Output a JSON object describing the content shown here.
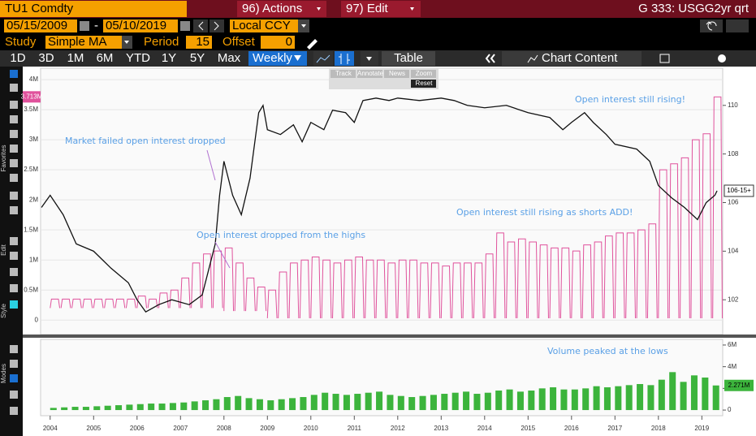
{
  "header": {
    "ticker": "TU1 Comdty",
    "actions": "96) Actions",
    "edit": "97) Edit",
    "chart_id": "G 333: USGG2yr qrt"
  },
  "controls": {
    "start_date": "05/15/2009",
    "end_date": "05/10/2019",
    "currency": "Local CCY",
    "study_label": "Study",
    "study": "Simple MA",
    "period_label": "Period",
    "period": 15,
    "offset_label": "Offset",
    "offset": 0
  },
  "toolbar": {
    "ranges": [
      "1D",
      "3D",
      "1M",
      "6M",
      "YTD",
      "1Y",
      "5Y",
      "Max"
    ],
    "frequency": "Weekly",
    "table": "Table",
    "chart_content": "Chart Content"
  },
  "popup": [
    "Track",
    "Annotate",
    "News",
    "Zoom",
    "Reset"
  ],
  "side_labels": [
    "Favorites",
    "Edit",
    "Style",
    "Modes"
  ],
  "chart_data": [
    {
      "type": "line",
      "x_price": [
        2003.8,
        2004.0,
        2004.3,
        2004.6,
        2005.0,
        2005.4,
        2005.8,
        2006.0,
        2006.2,
        2006.5,
        2006.8,
        2007.2,
        2007.5,
        2007.8,
        2007.9,
        2008.0,
        2008.2,
        2008.4,
        2008.6,
        2008.8,
        2008.9,
        2009.0,
        2009.3,
        2009.6,
        2009.8,
        2010.0,
        2010.3,
        2010.5,
        2010.8,
        2011.0,
        2011.2,
        2011.5,
        2011.8,
        2012.0,
        2012.5,
        2013.0,
        2013.3,
        2013.6,
        2014.0,
        2014.5,
        2015.0,
        2015.5,
        2015.8,
        2016.0,
        2016.3,
        2016.5,
        2016.8,
        2017.0,
        2017.5,
        2017.8,
        2018.0,
        2018.3,
        2018.6,
        2018.9,
        2019.1,
        2019.3,
        2019.35
      ],
      "price": [
        105.8,
        106.3,
        105.5,
        104.3,
        104.0,
        103.3,
        102.7,
        102.0,
        101.5,
        101.8,
        102.0,
        101.8,
        102.2,
        104.3,
        106.3,
        107.7,
        106.3,
        105.5,
        107.0,
        109.7,
        110.0,
        109.0,
        108.8,
        109.2,
        108.5,
        109.3,
        109.0,
        109.8,
        109.7,
        109.3,
        110.2,
        110.3,
        110.2,
        110.3,
        110.2,
        110.3,
        110.2,
        110.0,
        109.9,
        110.0,
        109.7,
        109.5,
        109.0,
        109.3,
        109.7,
        109.3,
        108.8,
        108.4,
        108.2,
        107.7,
        106.7,
        106.2,
        105.8,
        105.3,
        106.0,
        106.3,
        106.484375
      ],
      "price_color": "#111111",
      "price_last_label": "106-15+",
      "oi_x": [
        2004,
        2004.25,
        2004.5,
        2004.75,
        2005,
        2005.25,
        2005.5,
        2005.75,
        2006,
        2006.25,
        2006.5,
        2006.75,
        2007,
        2007.25,
        2007.5,
        2007.75,
        2008,
        2008.25,
        2008.5,
        2008.75,
        2009,
        2009.25,
        2009.5,
        2009.75,
        2010,
        2010.25,
        2010.5,
        2010.75,
        2011,
        2011.25,
        2011.5,
        2011.75,
        2012,
        2012.25,
        2012.5,
        2012.75,
        2013,
        2013.25,
        2013.5,
        2013.75,
        2014,
        2014.25,
        2014.5,
        2014.75,
        2015,
        2015.25,
        2015.5,
        2015.75,
        2016,
        2016.25,
        2016.5,
        2016.75,
        2017,
        2017.25,
        2017.5,
        2017.75,
        2018,
        2018.25,
        2018.5,
        2018.75,
        2019,
        2019.25
      ],
      "oi_peak": [
        0.35,
        0.35,
        0.35,
        0.35,
        0.35,
        0.35,
        0.35,
        0.35,
        0.4,
        0.35,
        0.45,
        0.5,
        0.7,
        0.95,
        1.1,
        1.15,
        1.2,
        0.95,
        0.7,
        0.55,
        0.5,
        0.8,
        0.95,
        1.0,
        1.05,
        1.0,
        0.95,
        1.0,
        1.05,
        1.0,
        1.0,
        0.95,
        1.0,
        1.0,
        0.95,
        0.95,
        0.9,
        0.95,
        0.95,
        0.95,
        1.1,
        1.45,
        1.3,
        1.35,
        1.3,
        1.25,
        1.2,
        1.2,
        1.15,
        1.25,
        1.3,
        1.4,
        1.45,
        1.45,
        1.5,
        1.6,
        2.5,
        2.6,
        2.7,
        3.0,
        3.1,
        3.713
      ],
      "oi_low": [
        0.2,
        0.2,
        0.2,
        0.2,
        0.2,
        0.2,
        0.2,
        0.2,
        0.2,
        0.2,
        0.2,
        0.2,
        0.2,
        0.2,
        0.2,
        0.2,
        0.15,
        0.15,
        0.15,
        0.15,
        0.03,
        0.03,
        0.03,
        0.03,
        0.03,
        0.03,
        0.03,
        0.03,
        0.03,
        0.03,
        0.03,
        0.03,
        0.03,
        0.03,
        0.03,
        0.03,
        0.03,
        0.03,
        0.03,
        0.03,
        0.03,
        0.03,
        0.03,
        0.03,
        0.03,
        0.03,
        0.03,
        0.03,
        0.03,
        0.03,
        0.03,
        0.03,
        0.03,
        0.03,
        0.03,
        0.03,
        0.03,
        0.03,
        0.03,
        0.03,
        0.03,
        0.03
      ],
      "oi_color": "#e0529c",
      "oi_last_label": "3.713M",
      "xlim": [
        2003.78,
        2019.48
      ],
      "ylim": [
        -0.24,
        4.19
      ],
      "yticks": [
        0,
        {
          "value": 0.5,
          "label": "0.5M"
        },
        {
          "value": 1,
          "label": "1M"
        },
        {
          "value": 1.5,
          "label": "1.5M"
        },
        {
          "value": 2,
          "label": "2M"
        },
        {
          "value": 2.5,
          "label": "2.5M"
        },
        {
          "value": 3,
          "label": "3M"
        },
        {
          "value": 3.5,
          "label": "3.5M"
        },
        {
          "value": 4,
          "label": "4M"
        }
      ],
      "y2lim": [
        100.57,
        111.53
      ],
      "y2ticks": [
        102,
        104,
        106,
        108,
        110
      ],
      "annotations": [
        "Market failed open interest dropped",
        "Open interest dropped from the highs",
        "Open interest still rising as shorts ADD!",
        "Open interest still rising!"
      ]
    },
    {
      "type": "bar",
      "x": [
        2004,
        2004.25,
        2004.5,
        2004.75,
        2005,
        2005.25,
        2005.5,
        2005.75,
        2006,
        2006.25,
        2006.5,
        2006.75,
        2007,
        2007.25,
        2007.5,
        2007.75,
        2008,
        2008.25,
        2008.5,
        2008.75,
        2009,
        2009.25,
        2009.5,
        2009.75,
        2010,
        2010.25,
        2010.5,
        2010.75,
        2011,
        2011.25,
        2011.5,
        2011.75,
        2012,
        2012.25,
        2012.5,
        2012.75,
        2013,
        2013.25,
        2013.5,
        2013.75,
        2014,
        2014.25,
        2014.5,
        2014.75,
        2015,
        2015.25,
        2015.5,
        2015.75,
        2016,
        2016.25,
        2016.5,
        2016.75,
        2017,
        2017.25,
        2017.5,
        2017.75,
        2018,
        2018.25,
        2018.5,
        2018.75,
        2019,
        2019.25
      ],
      "values": [
        0.2,
        0.25,
        0.3,
        0.3,
        0.35,
        0.4,
        0.45,
        0.5,
        0.55,
        0.6,
        0.6,
        0.65,
        0.7,
        0.8,
        0.9,
        1.0,
        1.2,
        1.3,
        1.1,
        1.0,
        0.9,
        1.0,
        1.1,
        1.2,
        1.4,
        1.6,
        1.5,
        1.4,
        1.5,
        1.6,
        1.7,
        1.4,
        1.3,
        1.2,
        1.3,
        1.4,
        1.5,
        1.6,
        1.7,
        1.5,
        1.6,
        1.8,
        1.9,
        1.7,
        1.8,
        2.0,
        2.1,
        1.9,
        1.9,
        2.0,
        2.2,
        2.1,
        2.2,
        2.3,
        2.4,
        2.3,
        2.8,
        3.5,
        2.6,
        3.2,
        3.0,
        2.271
      ],
      "color": "#3cb43c",
      "last_label": "2.271M",
      "xlim": [
        2003.78,
        2019.48
      ],
      "xticks": [
        2004,
        2005,
        2006,
        2007,
        2008,
        2009,
        2010,
        2011,
        2012,
        2013,
        2014,
        2015,
        2016,
        2017,
        2018,
        2019
      ],
      "ylim": [
        -0.52,
        6.52
      ],
      "yticks": [
        0,
        {
          "value": 2,
          "label": "2M"
        },
        {
          "value": 4,
          "label": "4M"
        },
        {
          "value": 6,
          "label": "6M"
        }
      ],
      "annotation": "Volume peaked at the lows"
    }
  ]
}
